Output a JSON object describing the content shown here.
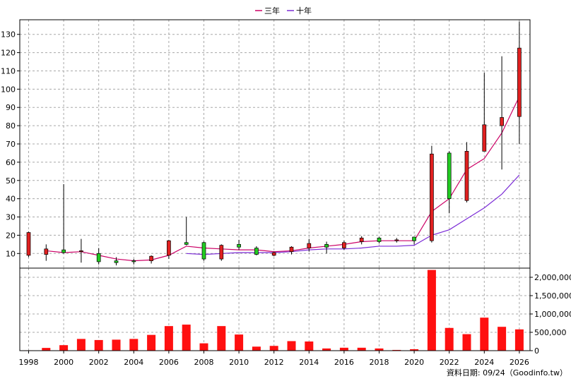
{
  "legend": [
    {
      "label": "三年",
      "color": "#cc0066"
    },
    {
      "label": "十年",
      "color": "#7b2bd6"
    }
  ],
  "footer": "資料日期: 09/24（Goodinfo.tw）",
  "colors": {
    "up": "#e02020",
    "down": "#22cc22",
    "volume": "#ff1010"
  },
  "chart_data": [
    {
      "type": "candlestick",
      "title": "",
      "ylim": [
        2,
        138
      ],
      "yticks": [
        10,
        20,
        30,
        40,
        50,
        60,
        70,
        80,
        90,
        100,
        110,
        120,
        130
      ],
      "grid": true,
      "legend_position": "top-center",
      "x": [
        1998,
        1999,
        2000,
        2001,
        2002,
        2003,
        2004,
        2005,
        2006,
        2007,
        2008,
        2009,
        2010,
        2011,
        2012,
        2013,
        2014,
        2015,
        2016,
        2017,
        2018,
        2019,
        2020,
        2021,
        2022,
        2023,
        2024,
        2025,
        2026
      ],
      "xticks": [
        1998,
        2000,
        2002,
        2004,
        2006,
        2008,
        2010,
        2012,
        2014,
        2016,
        2018,
        2020,
        2022,
        2024,
        2026
      ],
      "open": [
        9,
        9.5,
        12,
        11,
        10,
        6,
        6,
        6,
        9,
        16,
        16,
        7,
        15,
        13,
        9,
        11,
        13,
        15,
        13,
        16.5,
        18.5,
        17,
        19,
        17,
        65,
        39,
        66,
        80,
        85
      ],
      "high": [
        22,
        15,
        48,
        18,
        13,
        8,
        7,
        9,
        17.5,
        30,
        16.5,
        15,
        17.5,
        14,
        11,
        14,
        18,
        16.5,
        17,
        19.5,
        19,
        18.5,
        19,
        69,
        66,
        71,
        109,
        118,
        137
      ],
      "low": [
        8,
        6,
        10,
        5,
        4,
        3.5,
        4,
        4.5,
        7,
        14.5,
        6,
        6,
        12,
        9,
        8.5,
        9.5,
        11,
        10,
        12,
        15,
        15.5,
        16,
        15,
        16,
        32,
        38,
        66,
        56,
        70
      ],
      "close": [
        21.5,
        12.5,
        10.5,
        11.5,
        5.5,
        5,
        5.5,
        8.5,
        17,
        15,
        7,
        14.5,
        13.5,
        9.5,
        10.5,
        13.5,
        15.5,
        13.5,
        16,
        18.5,
        16.5,
        17.5,
        17,
        64.5,
        40,
        66,
        80.5,
        84.5,
        122.5
      ],
      "series": [
        {
          "name": "三年",
          "color": "#cc0066",
          "x": [
            1999,
            2000,
            2001,
            2002,
            2003,
            2004,
            2005,
            2006,
            2007,
            2008,
            2009,
            2010,
            2011,
            2012,
            2013,
            2014,
            2015,
            2016,
            2017,
            2018,
            2019,
            2020,
            2021,
            2022,
            2023,
            2024,
            2025,
            2026
          ],
          "values": [
            11.5,
            10.5,
            11,
            9,
            7,
            6,
            6.5,
            9,
            14,
            13,
            12.5,
            12,
            12,
            11,
            11.5,
            13,
            14,
            15,
            16.5,
            17,
            17,
            17,
            33,
            40,
            56,
            62,
            76,
            96
          ]
        },
        {
          "name": "十年",
          "color": "#7b2bd6",
          "x": [
            2007,
            2008,
            2009,
            2010,
            2011,
            2012,
            2013,
            2014,
            2015,
            2016,
            2017,
            2018,
            2019,
            2020,
            2021,
            2022,
            2023,
            2024,
            2025,
            2026
          ],
          "values": [
            10,
            9.5,
            10,
            10.5,
            10.5,
            10.5,
            11,
            12,
            12.5,
            12.5,
            13,
            14,
            14,
            14.5,
            20,
            23,
            29,
            35,
            42.5,
            53
          ]
        }
      ]
    },
    {
      "type": "bar",
      "title": "",
      "ylim": [
        0,
        2250000
      ],
      "yticks": [
        "0",
        "500,000",
        "1,000,000",
        "1,500,000",
        "2,000,000"
      ],
      "grid": true,
      "x": [
        1998,
        1999,
        2000,
        2001,
        2002,
        2003,
        2004,
        2005,
        2006,
        2007,
        2008,
        2009,
        2010,
        2011,
        2012,
        2013,
        2014,
        2015,
        2016,
        2017,
        2018,
        2019,
        2020,
        2021,
        2022,
        2023,
        2024,
        2025,
        2026
      ],
      "values": [
        10000,
        75000,
        150000,
        320000,
        290000,
        300000,
        320000,
        430000,
        670000,
        710000,
        200000,
        670000,
        440000,
        110000,
        130000,
        260000,
        250000,
        60000,
        80000,
        80000,
        60000,
        20000,
        40000,
        2200000,
        620000,
        450000,
        900000,
        650000,
        580000
      ]
    }
  ]
}
